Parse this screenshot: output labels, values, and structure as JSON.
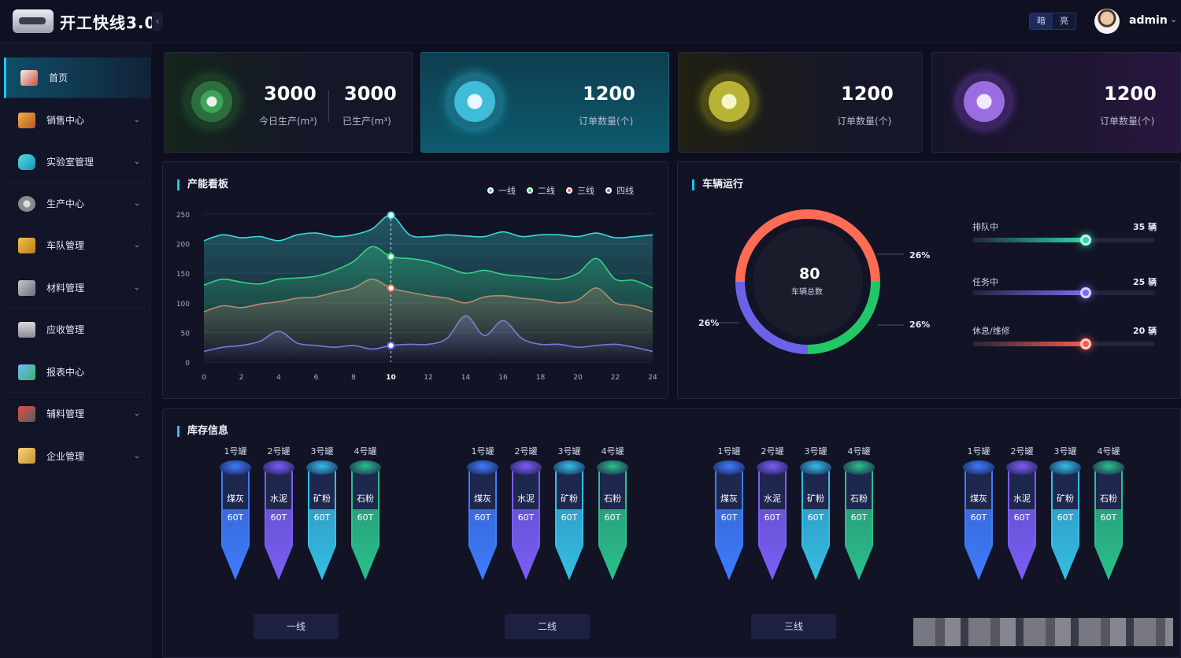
{
  "app": {
    "title": "开工快线3.0"
  },
  "header": {
    "theme": {
      "dark": "暗",
      "light": "亮"
    },
    "user": "admin"
  },
  "sidebar": {
    "items": [
      {
        "label": "首页",
        "icon": "home-icon",
        "active": true
      },
      {
        "label": "销售中心",
        "icon": "books-icon"
      },
      {
        "label": "实验室管理",
        "icon": "flask-icon"
      },
      {
        "label": "生产中心",
        "icon": "gears-icon"
      },
      {
        "label": "车队管理",
        "icon": "truck-icon"
      },
      {
        "label": "材料管理",
        "icon": "boxes-icon"
      },
      {
        "label": "应收管理",
        "icon": "calculator-icon"
      },
      {
        "label": "报表中心",
        "icon": "report-chart-icon"
      },
      {
        "label": "辅料管理",
        "icon": "cart-icon"
      },
      {
        "label": "企业管理",
        "icon": "briefcase-icon"
      }
    ]
  },
  "stats": {
    "today_produced": {
      "value": "3000",
      "label": "今日生产(m³)"
    },
    "produced": {
      "value": "3000",
      "label": "已生产(m³)"
    },
    "orders1": {
      "value": "1200",
      "label": "订单数量(个)"
    },
    "orders2": {
      "value": "1200",
      "label": "订单数量(个)"
    },
    "orders3": {
      "value": "1200",
      "label": "订单数量(个)"
    }
  },
  "capacity": {
    "title": "产能看板",
    "legend": [
      "一线",
      "二线",
      "三线",
      "四线"
    ]
  },
  "chart_data": {
    "type": "area",
    "title": "产能看板",
    "x": [
      0,
      1,
      2,
      3,
      4,
      5,
      6,
      7,
      8,
      9,
      10,
      11,
      12,
      13,
      14,
      15,
      16,
      17,
      18,
      19,
      20,
      21,
      22,
      23,
      24
    ],
    "xticks": [
      "0",
      "2",
      "4",
      "6",
      "8",
      "10",
      "12",
      "14",
      "16",
      "18",
      "20",
      "22",
      "24"
    ],
    "ylim": [
      0,
      250
    ],
    "yticks": [
      "0",
      "50",
      "100",
      "150",
      "200",
      "250"
    ],
    "highlight_x": 10,
    "colors": {
      "一线": "#3ed6d8",
      "二线": "#2fd06b",
      "三线": "#ee6a55",
      "四线": "#7b6cf0"
    },
    "series": [
      {
        "name": "一线",
        "values": [
          205,
          215,
          210,
          212,
          205,
          215,
          218,
          212,
          215,
          225,
          248,
          215,
          212,
          215,
          213,
          212,
          220,
          212,
          215,
          215,
          212,
          218,
          210,
          212,
          215
        ]
      },
      {
        "name": "二线",
        "values": [
          130,
          140,
          135,
          132,
          140,
          142,
          145,
          155,
          170,
          195,
          178,
          175,
          170,
          160,
          150,
          155,
          148,
          145,
          142,
          140,
          150,
          175,
          140,
          138,
          125
        ]
      },
      {
        "name": "三线",
        "values": [
          85,
          95,
          92,
          98,
          102,
          108,
          110,
          118,
          125,
          140,
          125,
          118,
          112,
          108,
          100,
          110,
          112,
          108,
          105,
          100,
          105,
          125,
          100,
          95,
          85
        ]
      },
      {
        "name": "四线",
        "values": [
          18,
          25,
          28,
          35,
          52,
          32,
          28,
          25,
          28,
          22,
          28,
          30,
          30,
          40,
          78,
          45,
          70,
          40,
          30,
          30,
          25,
          28,
          30,
          25,
          18
        ]
      }
    ]
  },
  "vehicles": {
    "title": "车辆运行",
    "total": "80",
    "total_label": "车辆总数",
    "pct_top_right": "26%",
    "pct_left": "26%",
    "pct_bottom_right": "26%",
    "rows": [
      {
        "label": "排队中",
        "value": "35 辆",
        "color": "#2fd6a8",
        "level": 0.62
      },
      {
        "label": "任务中",
        "value": "25 辆",
        "color": "#7a6cf0",
        "level": 0.62
      },
      {
        "label": "休息/维修",
        "value": "20 辆",
        "color": "#ff5a4a",
        "level": 0.62
      }
    ]
  },
  "inventory": {
    "title": "库存信息",
    "groups": [
      {
        "line": "一线"
      },
      {
        "line": "二线"
      },
      {
        "line": "三线"
      },
      {
        "line": ""
      }
    ],
    "tanks": [
      {
        "name": "1号罐",
        "material": "煤灰",
        "qty": "60T",
        "color": "#3f7cff"
      },
      {
        "name": "2号罐",
        "material": "水泥",
        "qty": "60T",
        "color": "#7b5ef7"
      },
      {
        "name": "3号罐",
        "material": "矿粉",
        "qty": "60T",
        "color": "#35bfe6"
      },
      {
        "name": "4号罐",
        "material": "石粉",
        "qty": "60T",
        "color": "#2bc08a"
      }
    ]
  }
}
